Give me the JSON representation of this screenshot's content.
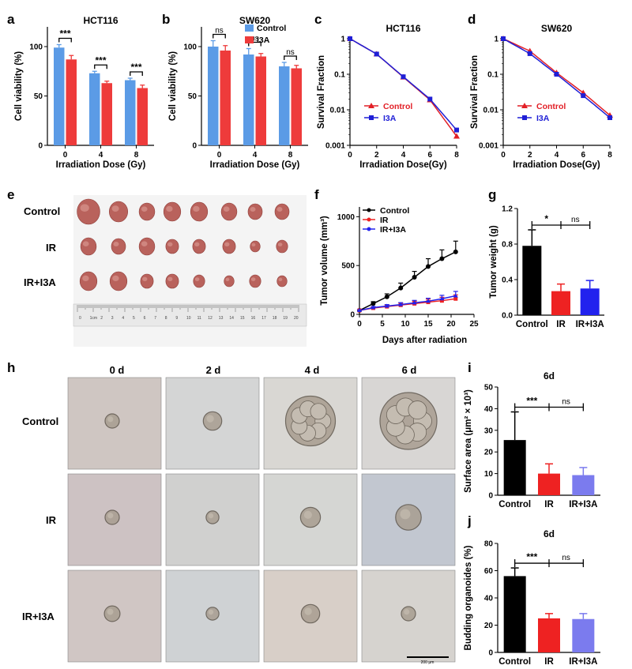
{
  "panel_labels": [
    "a",
    "b",
    "c",
    "d",
    "e",
    "f",
    "g",
    "h",
    "i",
    "j"
  ],
  "colors": {
    "control": "#5B9BE6",
    "i3a": "#EE3B3B",
    "black": "#000000",
    "red": "#EE2222",
    "blue": "#2222EE",
    "lavender": "#7B7BEE",
    "curve_red": "#E21F26",
    "curve_blue": "#1F1FD6"
  },
  "chart_data": [
    {
      "id": "a",
      "type": "bar",
      "title": "HCT116",
      "categories": [
        "0",
        "4",
        "8"
      ],
      "xlabel": "Irradiation Dose (Gy)",
      "ylabel": "Cell viability (%)",
      "ylim": [
        0,
        120
      ],
      "yticks": [
        "0",
        "50",
        "100"
      ],
      "series": [
        {
          "name": "Control",
          "values": [
            99,
            73,
            66
          ],
          "err": [
            3,
            2,
            2
          ]
        },
        {
          "name": "I3A",
          "values": [
            87,
            63,
            58
          ],
          "err": [
            4,
            2,
            3
          ]
        }
      ],
      "annotations": [
        "***",
        "***",
        "***"
      ]
    },
    {
      "id": "b",
      "type": "bar",
      "title": "SW620",
      "categories": [
        "0",
        "4",
        "8"
      ],
      "xlabel": "Irradiation Dose (Gy)",
      "ylabel": "Cell viability (%)",
      "ylim": [
        0,
        120
      ],
      "yticks": [
        "0",
        "50",
        "100"
      ],
      "series": [
        {
          "name": "Control",
          "values": [
            100,
            92,
            80
          ],
          "err": [
            6,
            6,
            4
          ]
        },
        {
          "name": "I3A",
          "values": [
            96,
            90,
            78
          ],
          "err": [
            5,
            3,
            3
          ]
        }
      ],
      "annotations": [
        "ns",
        "ns",
        "ns"
      ],
      "legend": "top-right"
    },
    {
      "id": "c",
      "type": "line",
      "title": "HCT116",
      "xlabel": "Irradiation Dose(Gy)",
      "ylabel": "Survival Fraction",
      "yscale": "log",
      "ylim": [
        0.001,
        1
      ],
      "xlim": [
        0,
        8
      ],
      "xticks": [
        "0",
        "2",
        "4",
        "6",
        "8"
      ],
      "yticks": [
        "0.001",
        "0.01",
        "0.1",
        "1"
      ],
      "series": [
        {
          "name": "Control",
          "x": [
            0,
            2,
            4,
            6,
            8
          ],
          "y": [
            1,
            0.37,
            0.083,
            0.019,
            0.0018
          ]
        },
        {
          "name": "I3A",
          "x": [
            0,
            2,
            4,
            6,
            8
          ],
          "y": [
            1,
            0.37,
            0.085,
            0.02,
            0.0027
          ]
        }
      ],
      "legend": "lower-left"
    },
    {
      "id": "d",
      "type": "line",
      "title": "SW620",
      "xlabel": "Irradiation Dose(Gy)",
      "ylabel": "Survival Fraction",
      "yscale": "log",
      "ylim": [
        0.001,
        1
      ],
      "xlim": [
        0,
        8
      ],
      "xticks": [
        "0",
        "2",
        "4",
        "6",
        "8"
      ],
      "yticks": [
        "0.001",
        "0.01",
        "0.1",
        "1"
      ],
      "series": [
        {
          "name": "Control",
          "x": [
            0,
            2,
            4,
            6,
            8
          ],
          "y": [
            1,
            0.45,
            0.11,
            0.03,
            0.007
          ]
        },
        {
          "name": "I3A",
          "x": [
            0,
            2,
            4,
            6,
            8
          ],
          "y": [
            1,
            0.38,
            0.1,
            0.025,
            0.006
          ]
        }
      ],
      "legend": "lower-left"
    },
    {
      "id": "f",
      "type": "line",
      "xlabel": "Days after radiation",
      "ylabel": "Tumor volume (mm³)",
      "xlim": [
        0,
        25
      ],
      "ylim": [
        0,
        1100
      ],
      "xticks": [
        "0",
        "5",
        "10",
        "15",
        "20",
        "25"
      ],
      "yticks": [
        "0",
        "500",
        "1000"
      ],
      "series": [
        {
          "name": "Control",
          "x": [
            0,
            3,
            6,
            9,
            12,
            15,
            18,
            21
          ],
          "y": [
            40,
            110,
            180,
            270,
            380,
            490,
            570,
            640
          ],
          "err": [
            5,
            20,
            30,
            50,
            60,
            80,
            90,
            110
          ]
        },
        {
          "name": "IR",
          "x": [
            0,
            3,
            6,
            9,
            12,
            15,
            18,
            21
          ],
          "y": [
            40,
            65,
            80,
            95,
            110,
            125,
            140,
            160
          ],
          "err": [
            5,
            10,
            15,
            20,
            25,
            30,
            35,
            40
          ]
        },
        {
          "name": "IR+I3A",
          "x": [
            0,
            3,
            6,
            9,
            12,
            15,
            18,
            21
          ],
          "y": [
            40,
            70,
            85,
            100,
            118,
            135,
            160,
            190
          ],
          "err": [
            5,
            10,
            15,
            20,
            25,
            30,
            35,
            45
          ]
        }
      ],
      "legend": "top-left"
    },
    {
      "id": "g",
      "type": "bar",
      "categories": [
        "Control",
        "IR",
        "IR+I3A"
      ],
      "ylabel": "Tumor weight (g)",
      "ylim": [
        0,
        1.2
      ],
      "yticks": [
        "0.0",
        "0.4",
        "0.8",
        "1.2"
      ],
      "values": [
        0.78,
        0.27,
        0.3
      ],
      "err": [
        0.18,
        0.08,
        0.09
      ],
      "annotations": [
        "*",
        "ns"
      ]
    },
    {
      "id": "i",
      "type": "bar",
      "title": "6d",
      "categories": [
        "Control",
        "IR",
        "IR+I3A"
      ],
      "ylabel": "Surface area (μm² × 10³)",
      "ylim": [
        0,
        50
      ],
      "yticks": [
        "0",
        "10",
        "20",
        "30",
        "40",
        "50"
      ],
      "values": [
        25.5,
        10,
        9.3
      ],
      "err": [
        13,
        4.5,
        3.5
      ],
      "annotations": [
        "***",
        "ns"
      ]
    },
    {
      "id": "j",
      "type": "bar",
      "title": "6d",
      "categories": [
        "Control",
        "IR",
        "IR+I3A"
      ],
      "ylabel": "Budding organoides (%)",
      "ylim": [
        0,
        80
      ],
      "yticks": [
        "0",
        "20",
        "40",
        "60",
        "80"
      ],
      "values": [
        56,
        25,
        24.5
      ],
      "err": [
        6,
        3.5,
        4
      ],
      "annotations": [
        "***",
        "ns"
      ]
    }
  ],
  "panel_e": {
    "rows": [
      "Control",
      "IR",
      "IR+I3A"
    ],
    "tumor_counts": [
      8,
      8,
      8
    ],
    "ruler_numbers": [
      "0",
      "1cm",
      "2",
      "3",
      "4",
      "5",
      "6",
      "7",
      "8",
      "9",
      "10",
      "11",
      "12",
      "13",
      "14",
      "15",
      "16",
      "17",
      "18",
      "19",
      "20"
    ]
  },
  "panel_h": {
    "days": [
      "0 d",
      "2 d",
      "4 d",
      "6 d"
    ],
    "rows": [
      "Control",
      "IR",
      "IR+I3A"
    ],
    "scale_bar": "200 μm",
    "organoid_size": [
      [
        1,
        1.3,
        3.5,
        4
      ],
      [
        1,
        0.9,
        1.4,
        1.8
      ],
      [
        1.1,
        0.9,
        1.3,
        1
      ]
    ]
  }
}
